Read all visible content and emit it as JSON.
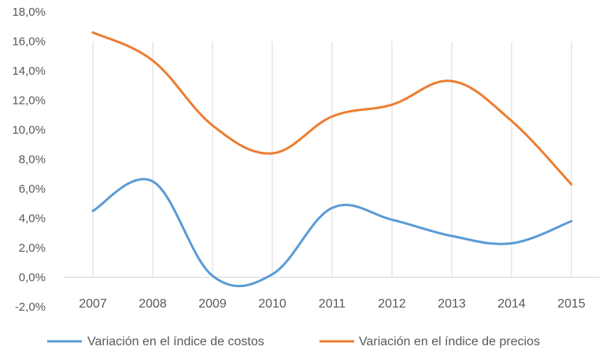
{
  "chart_data": {
    "type": "line",
    "title": "",
    "xlabel": "",
    "ylabel": "",
    "categories": [
      "2007",
      "2008",
      "2009",
      "2010",
      "2011",
      "2012",
      "2013",
      "2014",
      "2015"
    ],
    "ylim": [
      -2.0,
      18.0
    ],
    "yticks": [
      -2.0,
      0.0,
      2.0,
      4.0,
      6.0,
      8.0,
      10.0,
      12.0,
      14.0,
      16.0,
      18.0
    ],
    "ytick_labels": [
      "-2,0%",
      "0,0%",
      "2,0%",
      "4,0%",
      "6,0%",
      "8,0%",
      "10,0%",
      "12,0%",
      "14,0%",
      "16,0%",
      "18,0%"
    ],
    "grid": "vertical",
    "legend_position": "bottom",
    "smooth": true,
    "series": [
      {
        "name": "Variación en el índice de costos",
        "color": "#5B9BD5",
        "values": [
          4.5,
          6.5,
          0.1,
          0.2,
          4.7,
          3.9,
          2.8,
          2.3,
          3.8
        ]
      },
      {
        "name": "Variación en el índice de precios",
        "color": "#ED7D31",
        "values": [
          16.6,
          14.7,
          10.3,
          8.4,
          10.9,
          11.7,
          13.3,
          10.6,
          6.3
        ]
      }
    ]
  }
}
